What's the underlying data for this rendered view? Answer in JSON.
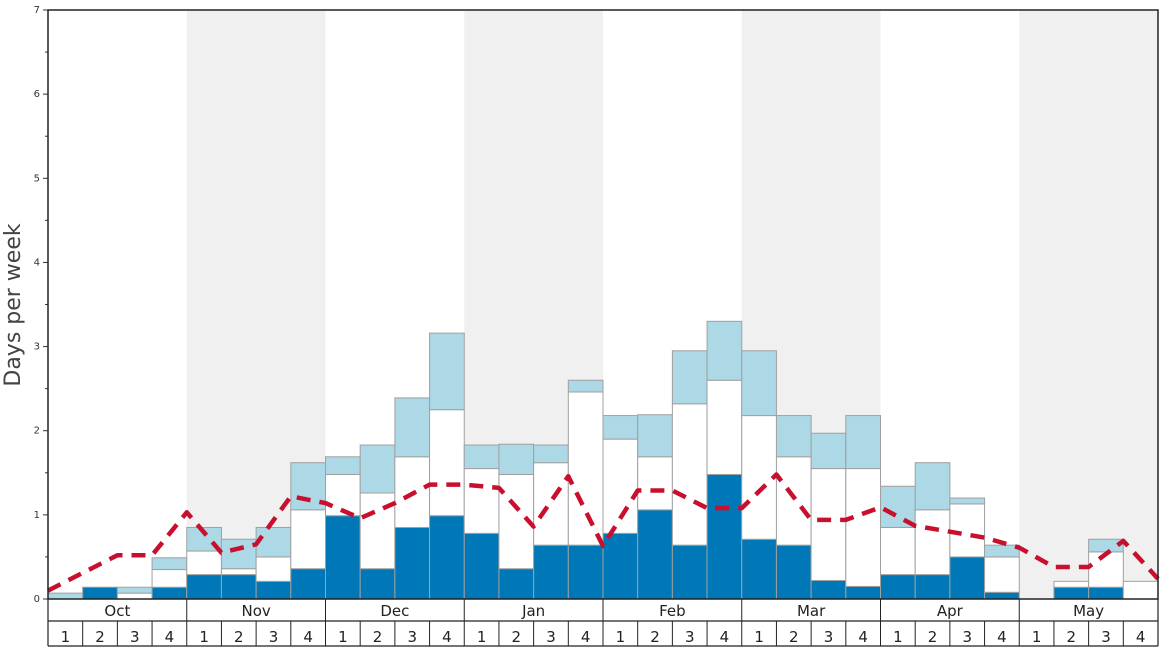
{
  "chart_data": {
    "type": "bar",
    "ylabel": "Days per week",
    "ylim": [
      0,
      7
    ],
    "yticks": [
      "0",
      "1",
      "2",
      "3",
      "4",
      "5",
      "6",
      "7"
    ],
    "months": [
      "Oct",
      "Nov",
      "Dec",
      "Jan",
      "Feb",
      "Mar",
      "Apr",
      "May"
    ],
    "week_labels": [
      "1",
      "2",
      "3",
      "4"
    ],
    "band_shading": [
      false,
      true,
      false,
      true,
      false,
      true,
      false,
      true
    ],
    "colors": {
      "dark_blue": "#0077b6",
      "white": "#ffffff",
      "light_blue": "#add8e6",
      "band": "#f0f0f0",
      "dashed_line": "#c8102e",
      "bar_border": "#a0a0a0"
    },
    "stacks": [
      [
        0.0,
        0.0,
        0.07
      ],
      [
        0.14,
        0.0,
        0.0
      ],
      [
        0.0,
        0.07,
        0.07
      ],
      [
        0.14,
        0.21,
        0.14
      ],
      [
        0.29,
        0.28,
        0.28
      ],
      [
        0.29,
        0.07,
        0.35
      ],
      [
        0.21,
        0.29,
        0.35
      ],
      [
        0.36,
        0.7,
        0.56
      ],
      [
        0.99,
        0.49,
        0.21
      ],
      [
        0.36,
        0.9,
        0.57
      ],
      [
        0.85,
        0.84,
        0.7
      ],
      [
        0.99,
        1.26,
        0.91
      ],
      [
        0.78,
        0.77,
        0.28
      ],
      [
        0.36,
        1.12,
        0.36
      ],
      [
        0.64,
        0.98,
        0.21
      ],
      [
        0.64,
        1.82,
        0.14
      ],
      [
        0.78,
        1.12,
        0.28
      ],
      [
        1.06,
        0.63,
        0.5
      ],
      [
        0.64,
        1.68,
        0.63
      ],
      [
        1.48,
        1.12,
        0.7
      ],
      [
        0.71,
        1.47,
        0.77
      ],
      [
        0.64,
        1.05,
        0.49
      ],
      [
        0.22,
        1.33,
        0.42
      ],
      [
        0.15,
        1.4,
        0.63
      ],
      [
        0.29,
        0.56,
        0.49
      ],
      [
        0.29,
        0.77,
        0.56
      ],
      [
        0.5,
        0.63,
        0.07
      ],
      [
        0.08,
        0.42,
        0.14
      ],
      [
        0.0,
        0.0,
        0.0
      ],
      [
        0.14,
        0.07,
        0.0
      ],
      [
        0.14,
        0.42,
        0.15
      ],
      [
        0.0,
        0.21,
        0.0
      ]
    ],
    "dashed_line": [
      0.1,
      0.52,
      0.52,
      1.03,
      0.55,
      0.65,
      1.22,
      1.14,
      0.96,
      1.14,
      1.36,
      1.36,
      1.32,
      0.86,
      1.46,
      0.63,
      1.29,
      1.29,
      1.08,
      1.08,
      1.48,
      0.94,
      0.94,
      1.09,
      0.87,
      0.8,
      0.73,
      0.61,
      0.38,
      0.38,
      0.69,
      0.24
    ],
    "dashed_line_x": [
      0,
      2,
      3,
      4,
      5,
      6,
      7,
      8,
      9,
      10,
      11,
      12,
      13,
      14,
      15,
      16,
      17,
      18,
      19,
      20,
      21,
      22,
      23,
      24,
      25,
      26,
      27,
      28,
      29,
      30,
      31,
      32
    ]
  }
}
